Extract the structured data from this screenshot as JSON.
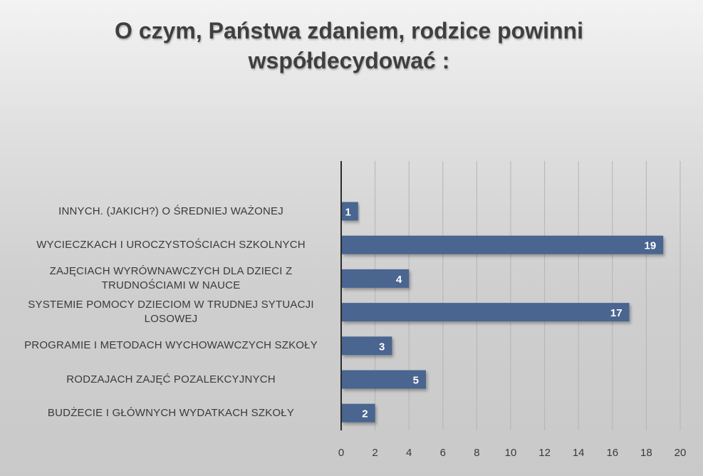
{
  "chart_data": {
    "type": "bar",
    "orientation": "horizontal",
    "title": "O czym, Państwa zdaniem, rodzice powinni współdecydować :",
    "categories": [
      "INNYCH. (JAKICH?) O ŚREDNIEJ WAŻONEJ",
      "WYCIECZKACH I UROCZYSTOŚCIACH SZKOLNYCH",
      "ZAJĘCIACH WYRÓWNAWCZYCH DLA DZIECI Z TRUDNOŚCIAMI W NAUCE",
      "SYSTEMIE POMOCY DZIECIOM W TRUDNEJ SYTUACJI LOSOWEJ",
      "PROGRAMIE I METODACH WYCHOWAWCZYCH SZKOŁY",
      "RODZAJACH ZAJĘĆ POZALEKCYJNYCH",
      "BUDŻECIE I GŁÓWNYCH WYDATKACH SZKOŁY"
    ],
    "values": [
      1,
      19,
      4,
      17,
      3,
      5,
      2
    ],
    "xlim": [
      0,
      20
    ],
    "x_ticks": [
      "0",
      "2",
      "4",
      "6",
      "8",
      "10",
      "12",
      "14",
      "16",
      "18",
      "20"
    ],
    "grid": "vertical",
    "bar_color": "#4a6590",
    "data_labels": true
  }
}
